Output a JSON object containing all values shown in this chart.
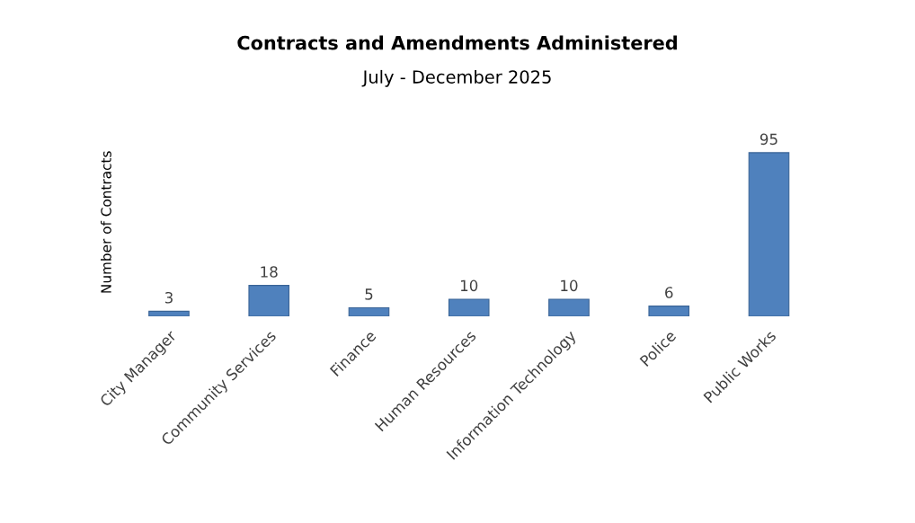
{
  "chart_data": {
    "type": "bar",
    "title": "Contracts and Amendments Administered",
    "subtitle": "July - December 2025",
    "ylabel": "Number of Contracts",
    "categories": [
      "City Manager",
      "Community Services",
      "Finance",
      "Human Resources",
      "Information Technology",
      "Police",
      "Public Works"
    ],
    "values": [
      3,
      18,
      5,
      10,
      10,
      6,
      95
    ],
    "color": "#4f81bd",
    "data_labels": true,
    "grid": false,
    "legend": false
  }
}
